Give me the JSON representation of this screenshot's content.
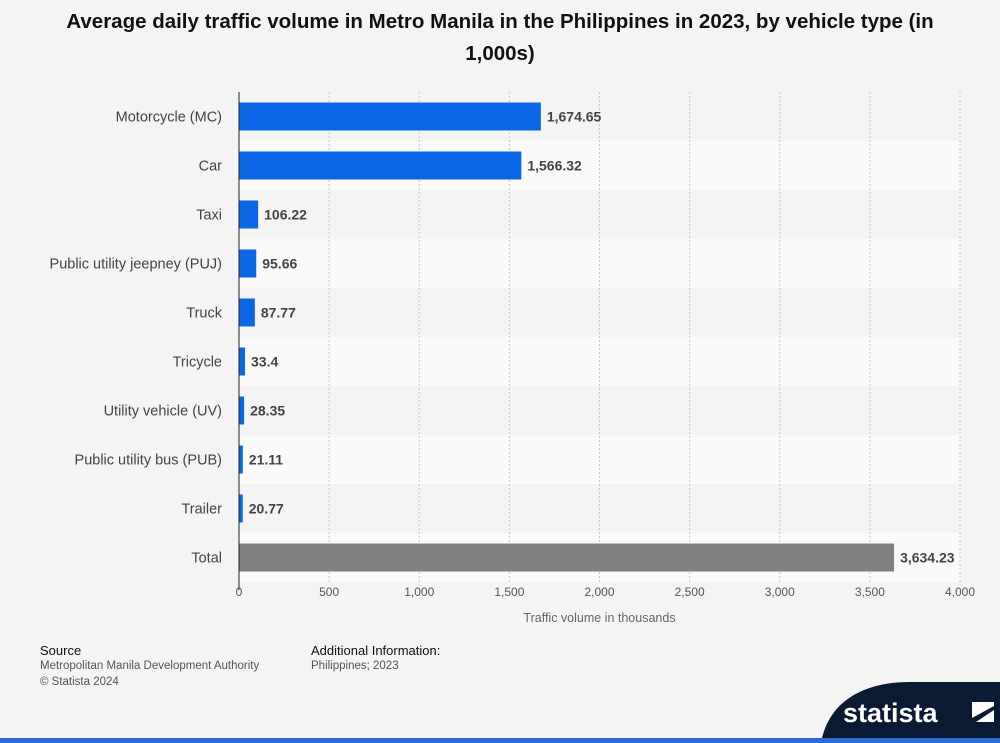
{
  "chart_data": {
    "type": "bar",
    "orientation": "horizontal",
    "title": "Average daily traffic volume in Metro Manila in the Philippines in 2023, by vehicle type (in 1,000s)",
    "categories": [
      "Motorcycle (MC)",
      "Car",
      "Taxi",
      "Public utility jeepney (PUJ)",
      "Truck",
      "Tricycle",
      "Utility vehicle (UV)",
      "Public utility bus (PUB)",
      "Trailer",
      "Total"
    ],
    "values": [
      1674.65,
      1566.32,
      106.22,
      95.66,
      87.77,
      33.4,
      28.35,
      21.11,
      20.77,
      3634.23
    ],
    "value_labels": [
      "1,674.65",
      "1,566.32",
      "106.22",
      "95.66",
      "87.77",
      "33.4",
      "28.35",
      "21.11",
      "20.77",
      "3,634.23"
    ],
    "xlabel": "Traffic volume in thousands",
    "ylabel": "",
    "xlim": [
      0,
      4000
    ],
    "xticks": [
      0,
      500,
      1000,
      1500,
      2000,
      2500,
      3000,
      3500,
      4000
    ],
    "xtick_labels": [
      "0",
      "500",
      "1,000",
      "1,500",
      "2,000",
      "2,500",
      "3,000",
      "3,500",
      "4,000"
    ],
    "grid": "vertical dotted",
    "colors": {
      "bar": "#0a66e4",
      "total_bar": "#7f7f7f"
    }
  },
  "footer": {
    "source_heading": "Source",
    "source_text": "Metropolitan Manila Development Authority",
    "copyright": "© Statista 2024",
    "additional_heading": "Additional Information:",
    "additional_text": "Philippines; 2023",
    "logo_text": "statista"
  }
}
